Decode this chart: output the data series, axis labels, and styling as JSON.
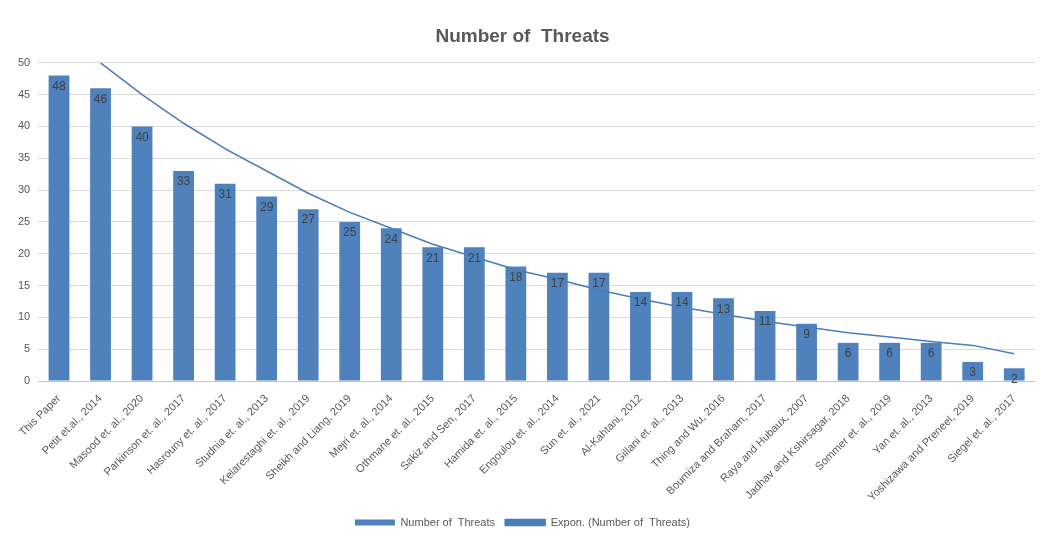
{
  "chart_data": {
    "type": "bar",
    "title": "Number of  Threats",
    "categories": [
      "This Paper",
      "Petit et.al., 2014",
      "Masood et. al., 2020",
      "Parkinson et. al., 2017",
      "Hasrouny et. al., 2017",
      "Studnia et. al., 2013",
      "Kelarestaghi et. al., 2019",
      "Sheikh and Liang, 2019",
      "Mejri et. al., 2014",
      "Othmane et. al., 2015",
      "Sakiz and Sen, 2017",
      "Hamida et. al., 2015",
      "Engoulou et. al., 2014",
      "Sun et. al., 2021",
      "Al-Kahtani, 2012",
      "Gillani et. al., 2013",
      "Thing and Wu, 2016",
      "Boumiza and Braham, 2017",
      "Raya and Hubaux, 2007",
      "Jadhav and Kshirsagar, 2018",
      "Sommer et. al., 2019",
      "Yan et. al., 2013",
      "Yoshizawa and Preneel, 2019",
      "Siegel et. al., 2017"
    ],
    "series": [
      {
        "name": "Number of  Threats",
        "color": "#4f81bd",
        "values": [
          48,
          46,
          40,
          33,
          31,
          29,
          27,
          25,
          24,
          21,
          21,
          18,
          17,
          17,
          14,
          14,
          13,
          11,
          9,
          6,
          6,
          6,
          3,
          2
        ],
        "value_labels": [
          "48",
          "46",
          "40",
          "33",
          "31",
          "29",
          "27",
          "25",
          "24",
          "21",
          "21",
          "18",
          "17",
          "17",
          "14",
          "14",
          "13",
          "11",
          "9",
          "6",
          "6",
          "6",
          "3",
          "2"
        ]
      },
      {
        "name": "Expon. (Number of  Threats)",
        "type": "line",
        "color": "#4a7ebb",
        "values": [
          null,
          50,
          45,
          40.5,
          36.5,
          33,
          29.5,
          26.5,
          24,
          21.5,
          19.5,
          17.5,
          16,
          14.3,
          12.9,
          11.6,
          10.5,
          9.4,
          8.5,
          7.6,
          6.9,
          6.2,
          5.6,
          4.3
        ]
      }
    ],
    "ylim": [
      0,
      50
    ],
    "yticks": [
      0,
      5,
      10,
      15,
      20,
      25,
      30,
      35,
      40,
      45,
      50
    ],
    "grid": "y",
    "legend": "bottom",
    "marker": "none",
    "line_style": "solid"
  }
}
